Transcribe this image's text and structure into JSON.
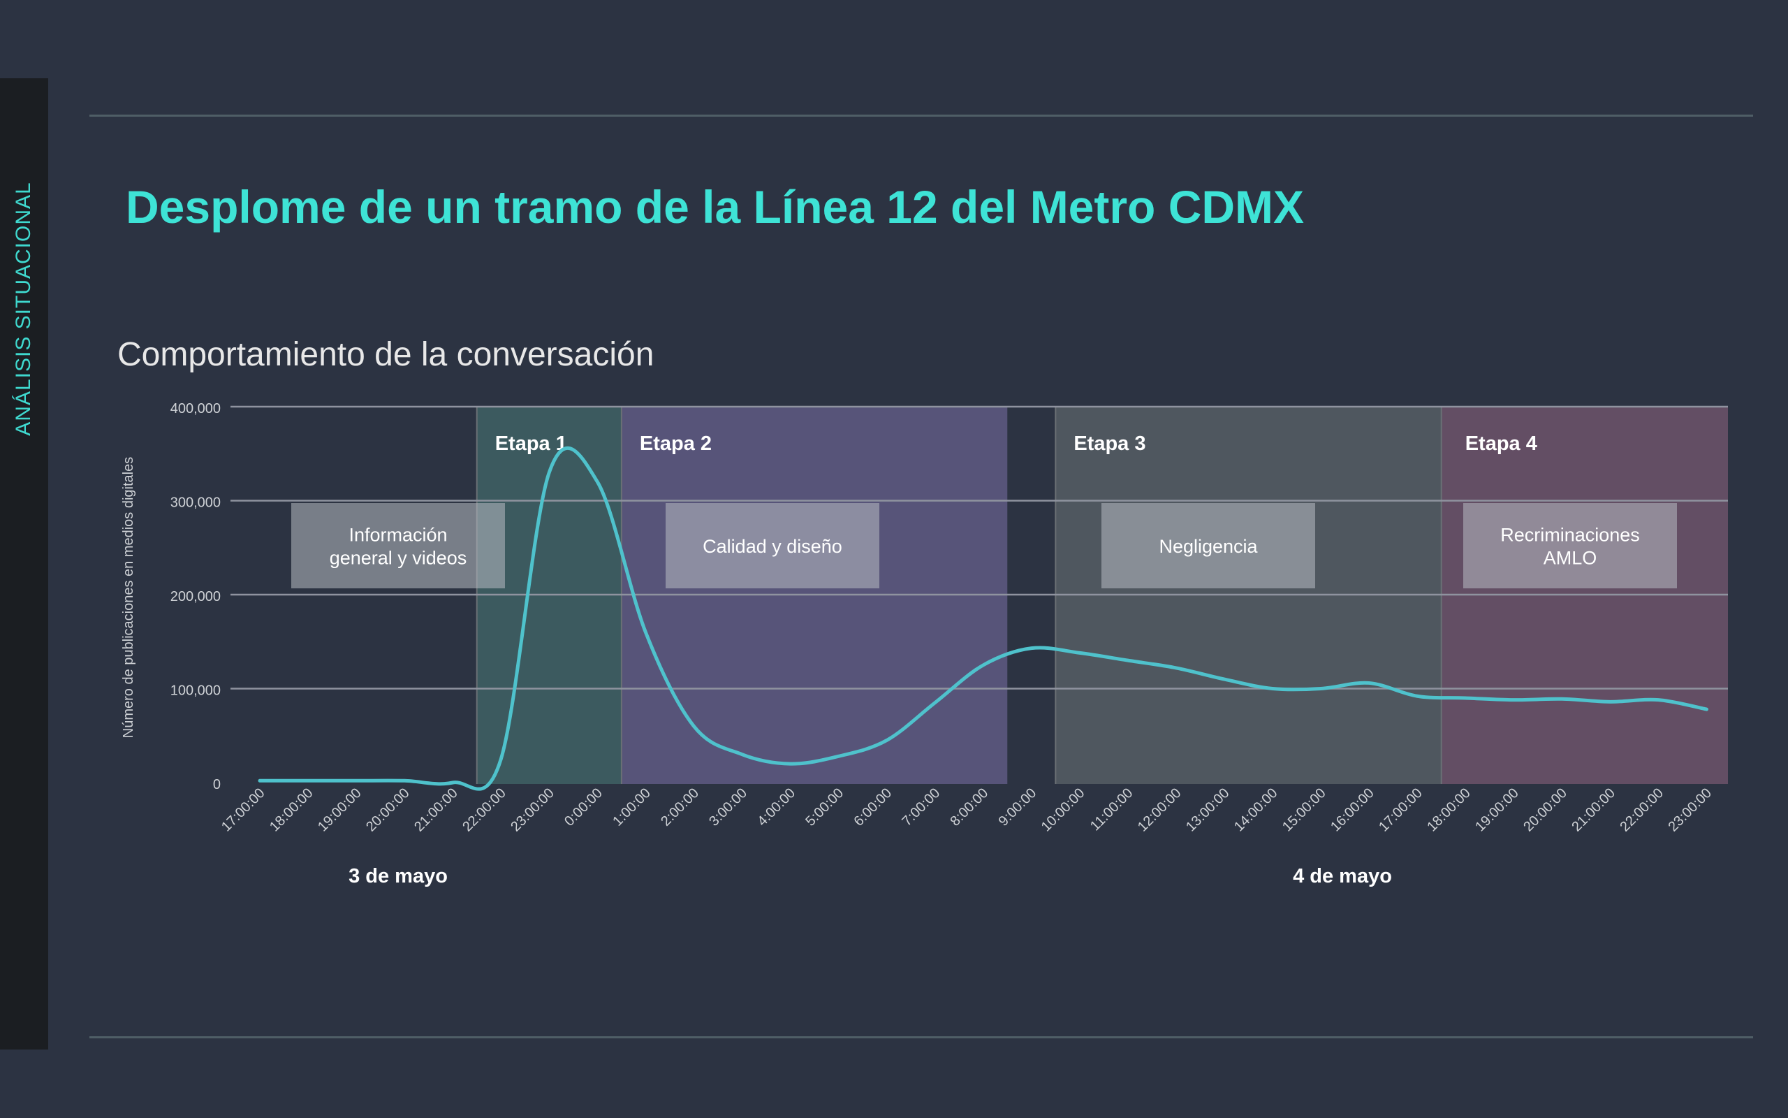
{
  "sidebar": {
    "label": "ANÁLISIS SITUACIONAL"
  },
  "page": {
    "title": "Desplome de un tramo de la Línea 12 del Metro CDMX"
  },
  "colors": {
    "background": "#2c3342",
    "accent": "#3ee3d6",
    "line": "#4fc2cc",
    "stage1": "#3c5a5f",
    "stage2": "#575479",
    "stage3": "#4f575f",
    "stage4": "#634e64"
  },
  "chart_data": {
    "type": "line",
    "title": "Comportamiento de la conversación",
    "ylabel": "Número de publicaciones en medios digitales",
    "xlabel": "",
    "ylim": [
      0,
      400000
    ],
    "yticks": [
      0,
      100000,
      200000,
      300000,
      400000
    ],
    "ytick_labels": [
      "0",
      "100,000",
      "200,000",
      "300,000",
      "400,000"
    ],
    "grid": true,
    "categories": [
      "17:00:00",
      "18:00:00",
      "19:00:00",
      "20:00:00",
      "21:00:00",
      "22:00:00",
      "23:00:00",
      "0:00:00",
      "1:00:00",
      "2:00:00",
      "3:00:00",
      "4:00:00",
      "5:00:00",
      "6:00:00",
      "7:00:00",
      "8:00:00",
      "9:00:00",
      "10:00:00",
      "11:00:00",
      "12:00:00",
      "13:00:00",
      "14:00:00",
      "15:00:00",
      "16:00:00",
      "17:00:00",
      "18:00:00",
      "19:00:00",
      "20:00:00",
      "21:00:00",
      "22:00:00",
      "23:00:00"
    ],
    "series": [
      {
        "values": [
          2000,
          2000,
          2000,
          2000,
          0,
          25000,
          330000,
          320000,
          160000,
          60000,
          30000,
          20000,
          28000,
          45000,
          85000,
          125000,
          143000,
          138000,
          130000,
          122000,
          110000,
          100000,
          100000,
          106000,
          92000,
          90000,
          88000,
          89000,
          86000,
          88000,
          78000
        ]
      }
    ],
    "date_labels": [
      {
        "text": "3 de mayo",
        "category": "21:00:00"
      },
      {
        "text": "4 de mayo",
        "category": "16:00:00"
      }
    ],
    "stages": [
      {
        "label": "Etapa 1",
        "from": "21:00:00",
        "to": "0:00:00",
        "color": "#3c5a5f"
      },
      {
        "label": "Etapa 2",
        "from": "0:00:00",
        "to": "8:00:00",
        "color": "#575479"
      },
      {
        "label": "Etapa 3",
        "from": "9:00:00",
        "to": "17:00:00",
        "color": "#4f575f"
      },
      {
        "label": "Etapa 4",
        "from": "17:00:00",
        "to": "23:00:00",
        "color": "#634e64"
      }
    ],
    "annotations": [
      {
        "text": "Información general y videos",
        "category": "20:00:00"
      },
      {
        "text": "Calidad y diseño",
        "category": "4:00:00"
      },
      {
        "text": "Negligencia",
        "category": "13:00:00"
      },
      {
        "text": "Recriminaciones AMLO",
        "category": "20:00:00"
      }
    ]
  }
}
